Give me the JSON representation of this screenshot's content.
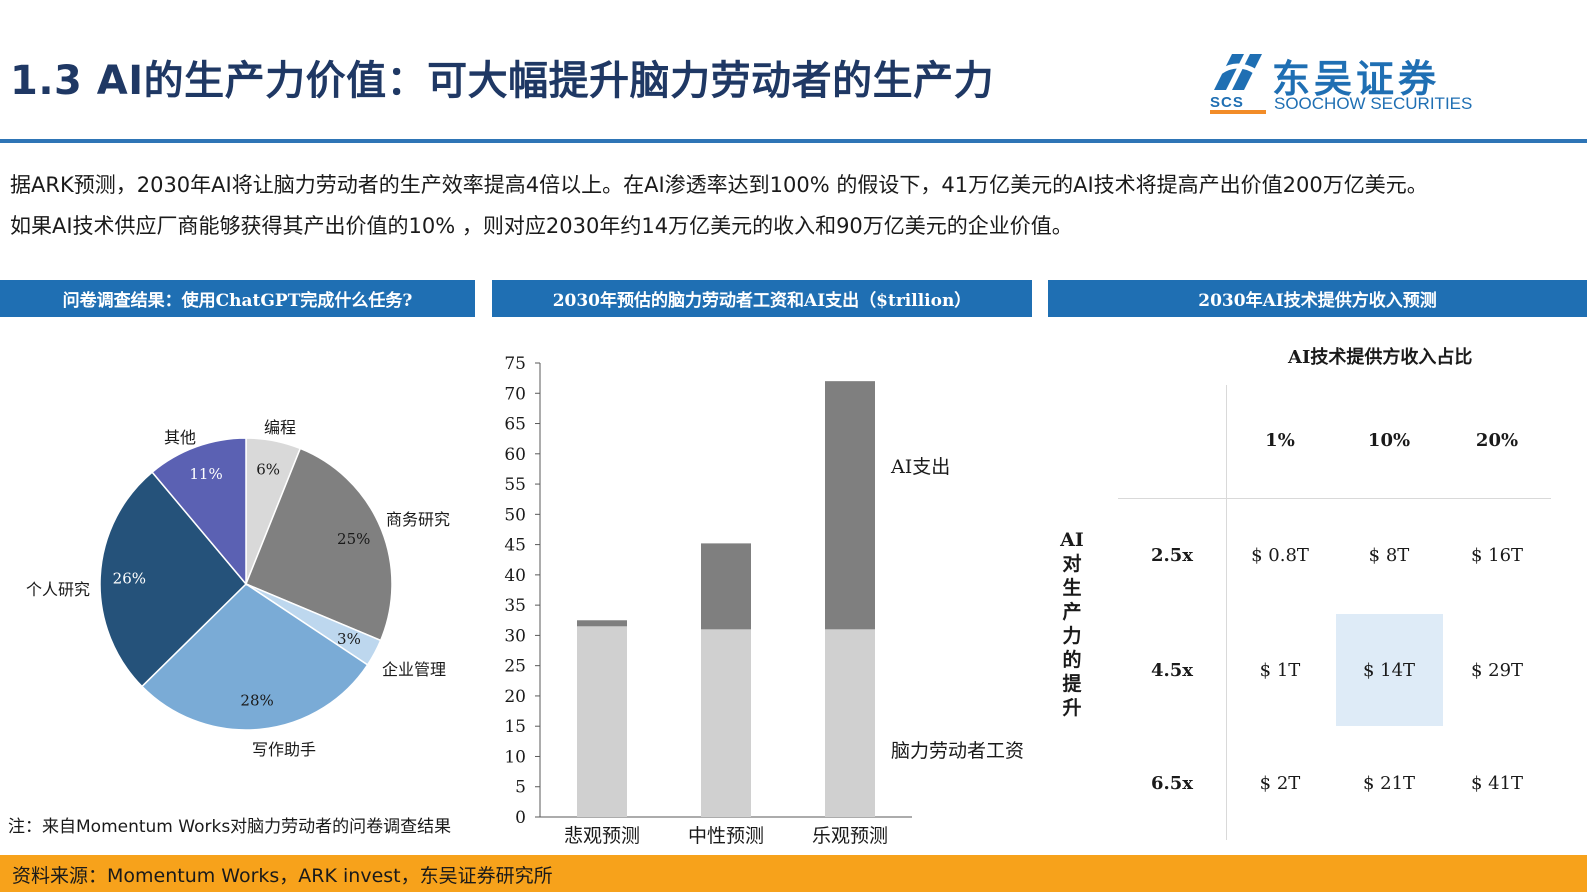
{
  "header": {
    "title": "1.3 AI的生产力价值：可大幅提升脑力劳动者的生产力",
    "logo_cn": "东吴证券",
    "logo_en": "SOOCHOW SECURITIES",
    "logo_abbr": "SCS"
  },
  "intro": {
    "line1": "据ARK预测，2030年AI将让脑力劳动者的生产效率提高4倍以上。在AI渗透率达到100% 的假设下，41万亿美元的AI技术将提高产出价值200万亿美元。",
    "line2": "如果AI技术供应厂商能够获得其产出价值的10% ，则对应2030年约14万亿美元的收入和90万亿美元的企业价值。"
  },
  "panels": {
    "left_header": "问卷调查结果：使用ChatGPT完成什么任务?",
    "middle_header": "2030年预估的脑力劳动者工资和AI支出（$trillion）",
    "right_header": "2030年AI技术提供方收入预测"
  },
  "note": "注：来自Momentum Works对脑力劳动者的问卷调查结果",
  "footer": "资料来源：Momentum Works，ARK invest，东吴证券研究所",
  "chart_data": [
    {
      "type": "pie",
      "slices": [
        {
          "label": "编程",
          "value": 6,
          "pct_label": "6%",
          "color": "#d9d9d9"
        },
        {
          "label": "商务研究",
          "value": 25,
          "pct_label": "25%",
          "color": "#808080"
        },
        {
          "label": "企业管理",
          "value": 3,
          "pct_label": "3%",
          "color": "#bdd7ee"
        },
        {
          "label": "写作助手",
          "value": 28,
          "pct_label": "28%",
          "color": "#7aabd6"
        },
        {
          "label": "个人研究",
          "value": 26,
          "pct_label": "26%",
          "color": "#25527a"
        },
        {
          "label": "其他",
          "value": 11,
          "pct_label": "11%",
          "color": "#5b61b3"
        }
      ]
    },
    {
      "type": "bar",
      "stacked": true,
      "categories": [
        "悲观预测",
        "中性预测",
        "乐观预测"
      ],
      "series": [
        {
          "name": "脑力劳动者工资",
          "values": [
            31.5,
            31,
            31
          ],
          "color": "#d0d0d0"
        },
        {
          "name": "AI支出",
          "values": [
            1,
            14.2,
            41
          ],
          "color": "#7f7f7f"
        }
      ],
      "ylim": [
        0,
        75
      ],
      "yticks": [
        0,
        5,
        10,
        15,
        20,
        25,
        30,
        35,
        40,
        45,
        50,
        55,
        60,
        65,
        70,
        75
      ]
    },
    {
      "type": "table",
      "title": "AI技术提供方收入占比",
      "row_axis_label": "AI对生产力的提升",
      "columns": [
        "1%",
        "10%",
        "20%"
      ],
      "rows": [
        {
          "label": "2.5x",
          "cells": [
            "$ 0.8T",
            "$ 8T",
            "$ 16T"
          ]
        },
        {
          "label": "4.5x",
          "cells": [
            "$ 1T",
            "$ 14T",
            "$ 29T"
          ]
        },
        {
          "label": "6.5x",
          "cells": [
            "$ 2T",
            "$ 21T",
            "$ 41T"
          ]
        }
      ],
      "highlight": {
        "row": 1,
        "col": 1,
        "color": "#deebf7"
      }
    }
  ]
}
